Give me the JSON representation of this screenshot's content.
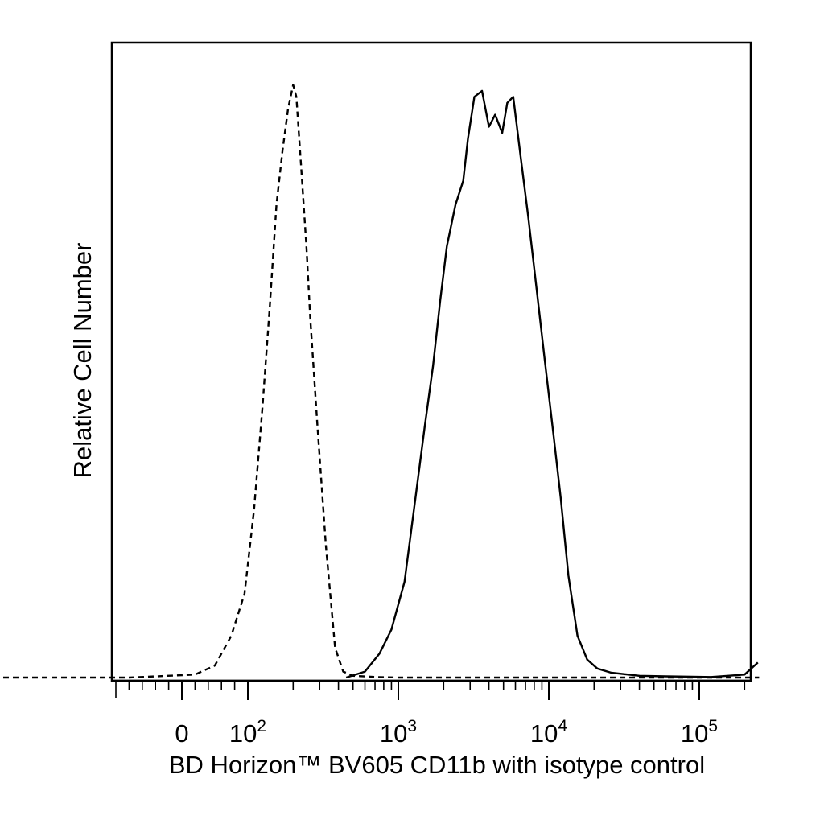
{
  "chart_data": {
    "type": "area",
    "title": "",
    "xlabel": "BD Horizon™ BV605 CD11b with isotype control",
    "ylabel": "Relative Cell Number",
    "x_scale": "biexponential (linear near 0, log above 10^2)",
    "xlim": [
      -300,
      250000
    ],
    "ylim": [
      0,
      1
    ],
    "x_ticks": [
      {
        "value": 0,
        "base": "0",
        "exp": ""
      },
      {
        "value": 100,
        "base": "10",
        "exp": "2"
      },
      {
        "value": 1000,
        "base": "10",
        "exp": "3"
      },
      {
        "value": 10000,
        "base": "10",
        "exp": "4"
      },
      {
        "value": 100000,
        "base": "10",
        "exp": "5"
      }
    ],
    "grid": false,
    "legend": "none",
    "series": [
      {
        "style": "dashed",
        "color": "#000000",
        "points": [
          [
            -300,
            0
          ],
          [
            -80,
            0
          ],
          [
            20,
            0.005
          ],
          [
            50,
            0.02
          ],
          [
            75,
            0.07
          ],
          [
            95,
            0.14
          ],
          [
            110,
            0.28
          ],
          [
            125,
            0.45
          ],
          [
            140,
            0.62
          ],
          [
            155,
            0.79
          ],
          [
            170,
            0.88
          ],
          [
            185,
            0.95
          ],
          [
            200,
            0.99
          ],
          [
            210,
            0.97
          ],
          [
            225,
            0.86
          ],
          [
            245,
            0.72
          ],
          [
            260,
            0.6
          ],
          [
            290,
            0.42
          ],
          [
            330,
            0.22
          ],
          [
            380,
            0.05
          ],
          [
            430,
            0.01
          ],
          [
            500,
            0.003
          ],
          [
            700,
            0.001
          ],
          [
            1000,
            0
          ],
          [
            250000,
            0
          ]
        ]
      },
      {
        "style": "solid",
        "color": "#000000",
        "points": [
          [
            450,
            0
          ],
          [
            600,
            0.01
          ],
          [
            750,
            0.04
          ],
          [
            900,
            0.08
          ],
          [
            1100,
            0.16
          ],
          [
            1300,
            0.3
          ],
          [
            1500,
            0.42
          ],
          [
            1700,
            0.52
          ],
          [
            1900,
            0.63
          ],
          [
            2100,
            0.72
          ],
          [
            2400,
            0.79
          ],
          [
            2700,
            0.83
          ],
          [
            2900,
            0.9
          ],
          [
            3200,
            0.97
          ],
          [
            3600,
            0.98
          ],
          [
            4000,
            0.92
          ],
          [
            4400,
            0.94
          ],
          [
            4900,
            0.91
          ],
          [
            5300,
            0.96
          ],
          [
            5800,
            0.97
          ],
          [
            6500,
            0.87
          ],
          [
            7300,
            0.77
          ],
          [
            8200,
            0.66
          ],
          [
            9400,
            0.53
          ],
          [
            10800,
            0.4
          ],
          [
            12000,
            0.3
          ],
          [
            13500,
            0.17
          ],
          [
            15500,
            0.07
          ],
          [
            18000,
            0.03
          ],
          [
            21000,
            0.015
          ],
          [
            26000,
            0.008
          ],
          [
            40000,
            0.003
          ],
          [
            60000,
            0.002
          ],
          [
            120000,
            0.001
          ],
          [
            200000,
            0.005
          ],
          [
            245000,
            0.025
          ]
        ]
      }
    ]
  }
}
